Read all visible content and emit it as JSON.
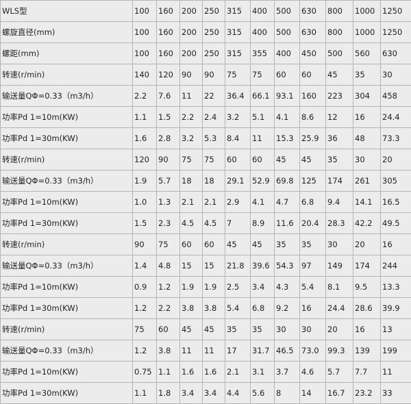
{
  "table": {
    "rows": [
      [
        "WLS型",
        "100",
        "160",
        "200",
        "250",
        "315",
        "400",
        "500",
        "630",
        "800",
        "1000",
        "1250"
      ],
      [
        "螺旋直径(mm)",
        "100",
        "160",
        "200",
        "250",
        "315",
        "400",
        "500",
        "630",
        "800",
        "1000",
        "1250"
      ],
      [
        "螺距(mm)",
        "100",
        "160",
        "200",
        "250",
        "315",
        "355",
        "400",
        "450",
        "500",
        "560",
        "630"
      ],
      [
        "转速(r/min)",
        "140",
        "120",
        "90",
        "90",
        "75",
        "75",
        "60",
        "60",
        "45",
        "35",
        "30"
      ],
      [
        "输送量QΦ=0.33（m3/h）",
        "2.2",
        "7.6",
        "11",
        "22",
        "36.4",
        "66.1",
        "93.1",
        "160",
        "223",
        "304",
        "458"
      ],
      [
        "功率Pd 1=10m(KW)",
        "1.1",
        "1.5",
        "2.2",
        "2.4",
        "3.2",
        "5.1",
        "4.1",
        "8.6",
        "12",
        "16",
        "24.4"
      ],
      [
        "功率Pd 1=30m(KW)",
        "1.6",
        "2.8",
        "3.2",
        "5.3",
        "8.4",
        "11",
        "15.3",
        "25.9",
        "36",
        "48",
        "73.3"
      ],
      [
        "转速(r/min)",
        "120",
        "90",
        "75",
        "75",
        "60",
        "60",
        "45",
        "45",
        "35",
        "30",
        "20"
      ],
      [
        "输送量QΦ=0.33（m3/h）",
        "1.9",
        "5.7",
        "18",
        "18",
        "29.1",
        "52.9",
        "69.8",
        "125",
        "174",
        "261",
        "305"
      ],
      [
        "功率Pd 1=10m(KW)",
        "1.0",
        "1.3",
        "2.1",
        "2.1",
        "2.9",
        "4.1",
        "4.7",
        "6.8",
        "9.4",
        "14.1",
        "16.5"
      ],
      [
        "功率Pd 1=30m(KW)",
        "1.5",
        "2.3",
        "4.5",
        "4.5",
        "7",
        "8.9",
        "11.6",
        "20.4",
        "28.3",
        "42.2",
        "49.5"
      ],
      [
        "转速(r/min)",
        "90",
        "75",
        "60",
        "60",
        "45",
        "45",
        "35",
        "35",
        "30",
        "20",
        "16"
      ],
      [
        "输送量QΦ=0.33（m3/h）",
        "1.4",
        "4.8",
        "15",
        "15",
        "21.8",
        "39.6",
        "54.3",
        "97",
        "149",
        "174",
        "244"
      ],
      [
        "功率Pd 1=10m(KW)",
        "0.9",
        "1.2",
        "1.9",
        "1.9",
        "2.5",
        "3.4",
        "4.3",
        "5.4",
        "8.1",
        "9.5",
        "13.3"
      ],
      [
        "功率Pd 1=30m(KW)",
        "1.2",
        "2.2",
        "3.8",
        "3.8",
        "5.4",
        "6.8",
        "9.2",
        "16",
        "24.4",
        "28.6",
        "39.9"
      ],
      [
        "转速(r/min)",
        "75",
        "60",
        "45",
        "45",
        "35",
        "35",
        "30",
        "30",
        "20",
        "16",
        "13"
      ],
      [
        "输送量QΦ=0.33（m3/h）",
        "1.2",
        "3.8",
        "11",
        "11",
        "17",
        "31.7",
        "46.5",
        "73.0",
        "99.3",
        "139",
        "199"
      ],
      [
        "功率Pd 1=10m(KW)",
        "0.75",
        "1.1",
        "1.6",
        "1.6",
        "2.1",
        "3.1",
        "3.7",
        "4.6",
        "5.7",
        "7.7",
        "11"
      ],
      [
        "功率Pd 1=30m(KW)",
        "1.1",
        "1.8",
        "3.4",
        "3.4",
        "4.4",
        "5.6",
        "8",
        "14",
        "16.7",
        "23.2",
        "33"
      ]
    ]
  }
}
